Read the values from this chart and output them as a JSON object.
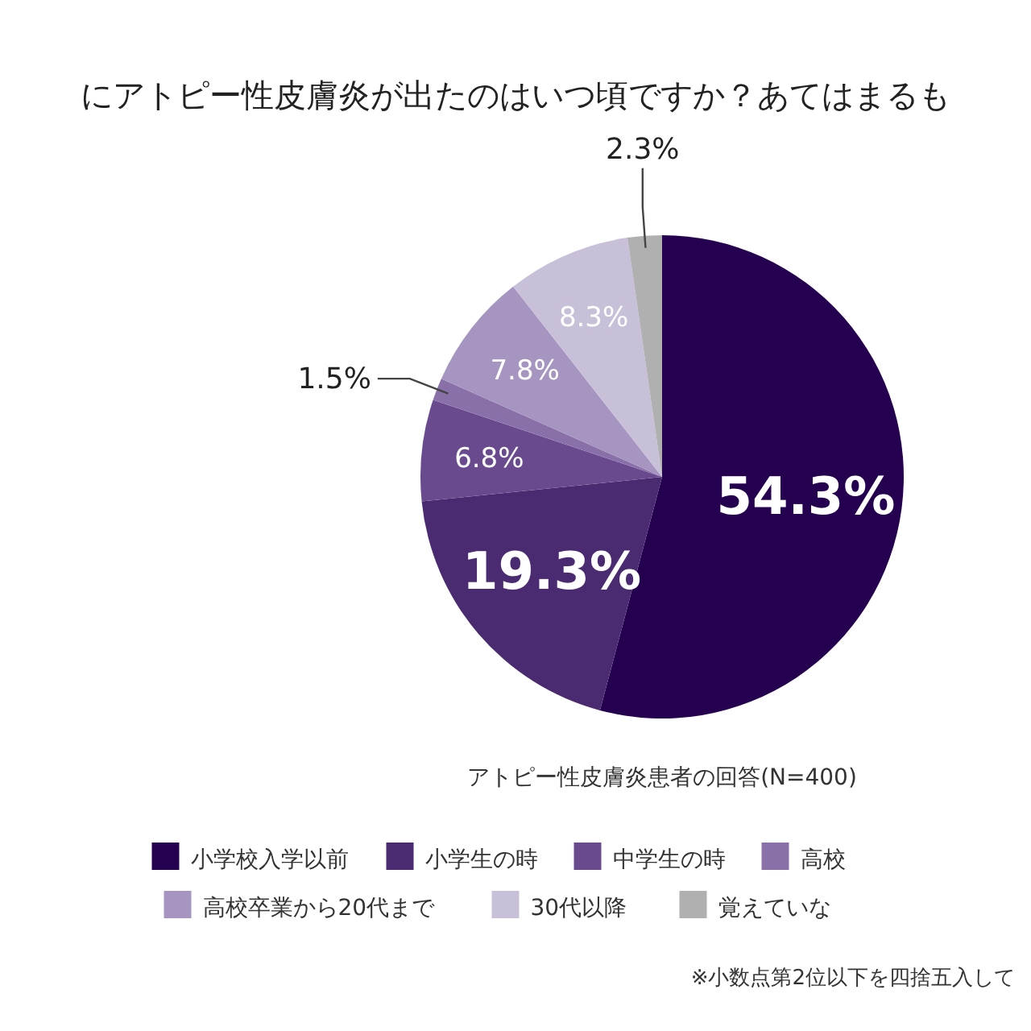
{
  "chart_data": {
    "type": "pie",
    "title": "にアトピー性皮膚炎が出たのはいつ頃ですか？あてはまるも",
    "categories": [
      "小学校入学以前",
      "小学生の時",
      "中学生の時",
      "高校",
      "高校卒業から20代まで",
      "30代以降",
      "覚えていな"
    ],
    "values": [
      54.3,
      19.3,
      6.8,
      1.5,
      7.8,
      8.3,
      2.3
    ],
    "colors": [
      "#250050",
      "#4a2a70",
      "#6a4a8f",
      "#8a70a8",
      "#a595c0",
      "#c8c0d8",
      "#b0b0b0"
    ],
    "value_labels": [
      "54.3%",
      "19.3%",
      "6.8%",
      "1.5%",
      "7.8%",
      "8.3%",
      "2.3%"
    ],
    "legend": "bottom",
    "annotations": [
      "アトピー性皮膚炎患者の回答(N=400)",
      "※小数点第2位以下を四捨五入して"
    ]
  }
}
